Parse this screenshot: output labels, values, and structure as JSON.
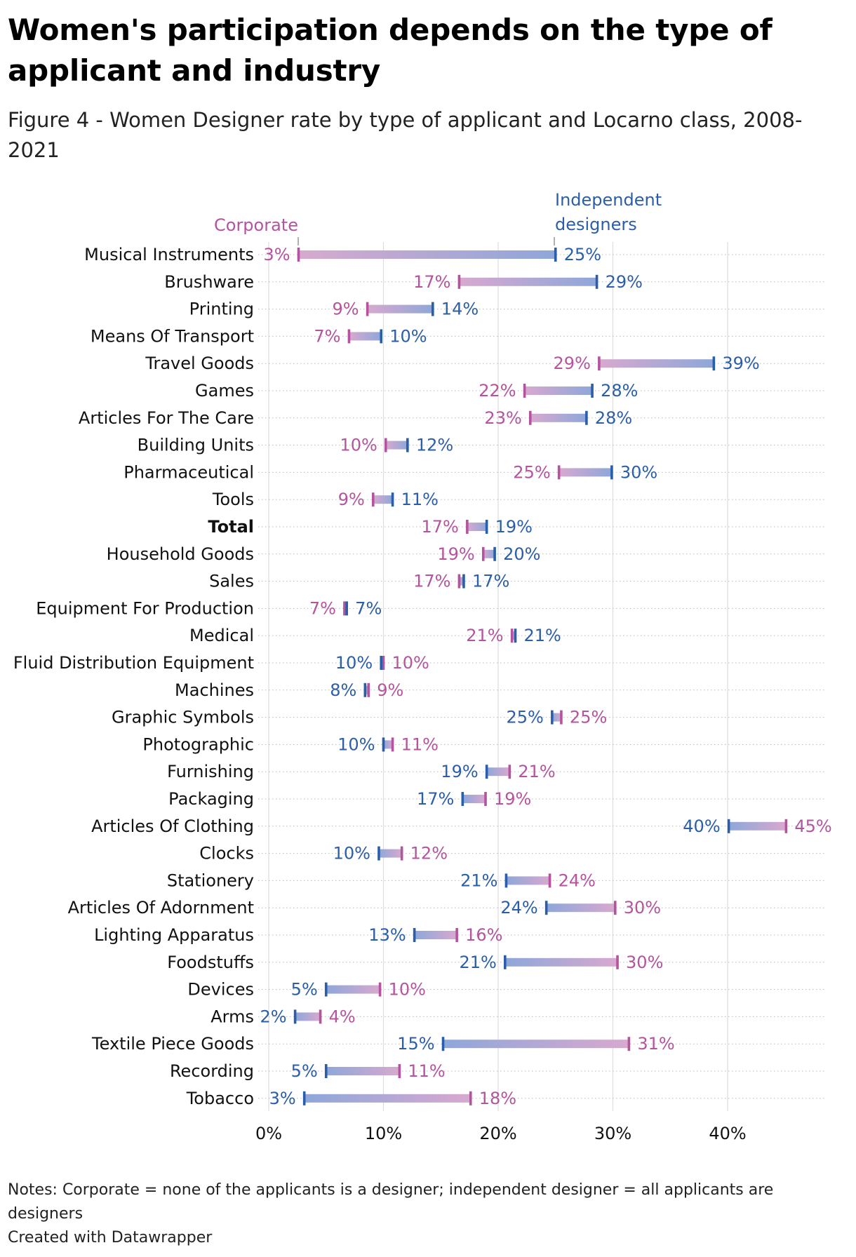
{
  "title": "Women's participation depends on the type of applicant and industry",
  "subtitle": "Figure 4 - Women Designer rate by type of applicant and Locarno class, 2008-2021",
  "notes": "Notes: Corporate = none of the applicants is a designer; independent designer = all applicants are designers",
  "credit": "Created with Datawrapper",
  "colors": {
    "corporate": "#b5549e",
    "independent": "#2b5ea8",
    "grid": "#dddddd",
    "dots": "#bbbbbb"
  },
  "chart_data": {
    "type": "range-dot",
    "x_axis": {
      "min": 0,
      "max": 45,
      "ticks": [
        0,
        10,
        20,
        30,
        40
      ],
      "tick_labels": [
        "0%",
        "10%",
        "20%",
        "30%",
        "40%"
      ]
    },
    "series": [
      {
        "key": "corporate",
        "name": "Corporate"
      },
      {
        "key": "independent",
        "name": "Independent designers"
      }
    ],
    "rows": [
      {
        "category": "Musical Instruments",
        "corporate": 2.6,
        "independent": 25,
        "corporate_label": "3%",
        "independent_label": "25%"
      },
      {
        "category": "Brushware",
        "corporate": 16.6,
        "independent": 28.6,
        "corporate_label": "17%",
        "independent_label": "29%"
      },
      {
        "category": "Printing",
        "corporate": 8.6,
        "independent": 14.3,
        "corporate_label": "9%",
        "independent_label": "14%"
      },
      {
        "category": "Means Of Transport",
        "corporate": 7,
        "independent": 9.8,
        "corporate_label": "7%",
        "independent_label": "10%"
      },
      {
        "category": "Travel Goods",
        "corporate": 28.8,
        "independent": 38.8,
        "corporate_label": "29%",
        "independent_label": "39%"
      },
      {
        "category": "Games",
        "corporate": 22.3,
        "independent": 28.2,
        "corporate_label": "22%",
        "independent_label": "28%"
      },
      {
        "category": "Articles For The Care",
        "corporate": 22.8,
        "independent": 27.7,
        "corporate_label": "23%",
        "independent_label": "28%"
      },
      {
        "category": "Building Units",
        "corporate": 10.2,
        "independent": 12.1,
        "corporate_label": "10%",
        "independent_label": "12%"
      },
      {
        "category": "Pharmaceutical",
        "corporate": 25.3,
        "independent": 29.9,
        "corporate_label": "25%",
        "independent_label": "30%"
      },
      {
        "category": "Tools",
        "corporate": 9.1,
        "independent": 10.8,
        "corporate_label": "9%",
        "independent_label": "11%"
      },
      {
        "category": "Total",
        "corporate": 17.3,
        "independent": 19,
        "corporate_label": "17%",
        "independent_label": "19%",
        "bold": true
      },
      {
        "category": "Household Goods",
        "corporate": 18.7,
        "independent": 19.7,
        "corporate_label": "19%",
        "independent_label": "20%"
      },
      {
        "category": "Sales",
        "corporate": 16.6,
        "independent": 17,
        "corporate_label": "17%",
        "independent_label": "17%"
      },
      {
        "category": "Equipment For Production",
        "corporate": 6.6,
        "independent": 6.8,
        "corporate_label": "7%",
        "independent_label": "7%"
      },
      {
        "category": "Medical",
        "corporate": 21.2,
        "independent": 21.5,
        "corporate_label": "21%",
        "independent_label": "21%"
      },
      {
        "category": "Fluid Distribution Equipment",
        "corporate": 10,
        "independent": 9.8,
        "corporate_label": "10%",
        "independent_label": "10%"
      },
      {
        "category": "Machines",
        "corporate": 8.7,
        "independent": 8.4,
        "corporate_label": "9%",
        "independent_label": "8%"
      },
      {
        "category": "Graphic Symbols",
        "corporate": 25.5,
        "independent": 24.7,
        "corporate_label": "25%",
        "independent_label": "25%"
      },
      {
        "category": "Photographic",
        "corporate": 10.8,
        "independent": 10,
        "corporate_label": "11%",
        "independent_label": "10%"
      },
      {
        "category": "Furnishing",
        "corporate": 21,
        "independent": 19,
        "corporate_label": "21%",
        "independent_label": "19%"
      },
      {
        "category": "Packaging",
        "corporate": 18.9,
        "independent": 16.9,
        "corporate_label": "19%",
        "independent_label": "17%"
      },
      {
        "category": "Articles Of Clothing",
        "corporate": 45.1,
        "independent": 40.1,
        "corporate_label": "45%",
        "independent_label": "40%"
      },
      {
        "category": "Clocks",
        "corporate": 11.6,
        "independent": 9.6,
        "corporate_label": "12%",
        "independent_label": "10%"
      },
      {
        "category": "Stationery",
        "corporate": 24.5,
        "independent": 20.7,
        "corporate_label": "24%",
        "independent_label": "21%"
      },
      {
        "category": "Articles Of Adornment",
        "corporate": 30.2,
        "independent": 24.2,
        "corporate_label": "30%",
        "independent_label": "24%"
      },
      {
        "category": "Lighting Apparatus",
        "corporate": 16.4,
        "independent": 12.7,
        "corporate_label": "16%",
        "independent_label": "13%"
      },
      {
        "category": "Foodstuffs",
        "corporate": 30.4,
        "independent": 20.6,
        "corporate_label": "30%",
        "independent_label": "21%"
      },
      {
        "category": "Devices",
        "corporate": 9.7,
        "independent": 5,
        "corporate_label": "10%",
        "independent_label": "5%"
      },
      {
        "category": "Arms",
        "corporate": 4.5,
        "independent": 2.3,
        "corporate_label": "4%",
        "independent_label": "2%"
      },
      {
        "category": "Textile Piece Goods",
        "corporate": 31.4,
        "independent": 15.2,
        "corporate_label": "31%",
        "independent_label": "15%"
      },
      {
        "category": "Recording",
        "corporate": 11.4,
        "independent": 5,
        "corporate_label": "11%",
        "independent_label": "5%"
      },
      {
        "category": "Tobacco",
        "corporate": 17.6,
        "independent": 3.1,
        "corporate_label": "18%",
        "independent_label": "3%"
      }
    ]
  }
}
